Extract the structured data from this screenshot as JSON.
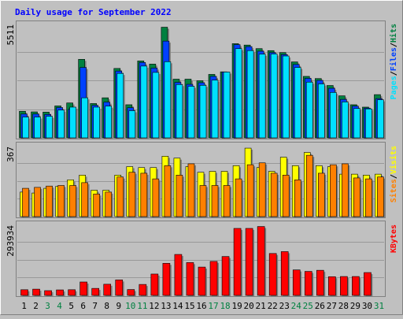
{
  "title": "Daily usage for September 2022",
  "colors": {
    "background": "#c0c0c0",
    "title": "#0000ff",
    "hits": "#008040",
    "files": "#0040ff",
    "pages": "#00e0ff",
    "visits": "#ffff00",
    "sites": "#ff8000",
    "kbytes": "#ff0000",
    "weekend_label": "#008040"
  },
  "chart_data": [
    {
      "type": "bar",
      "panel": "hits-files-pages",
      "ytick": "5511",
      "ylabel_parts": [
        "Pages",
        "/",
        "Files",
        "/",
        "Hits"
      ],
      "categories": [
        "1",
        "2",
        "3",
        "4",
        "5",
        "6",
        "7",
        "8",
        "9",
        "10",
        "11",
        "12",
        "13",
        "14",
        "15",
        "16",
        "17",
        "18",
        "19",
        "20",
        "21",
        "22",
        "23",
        "24",
        "25",
        "26",
        "27",
        "28",
        "29",
        "30",
        "31"
      ],
      "ylim": [
        0,
        5800
      ],
      "series": [
        {
          "name": "Hits",
          "values": [
            1340,
            1310,
            1300,
            1610,
            1760,
            3960,
            1730,
            2020,
            3500,
            1670,
            3880,
            3720,
            5580,
            2960,
            2960,
            2880,
            3200,
            3330,
            4750,
            4680,
            4500,
            4400,
            4300,
            3830,
            3100,
            2990,
            2640,
            2120,
            1670,
            1550,
            2180
          ]
        },
        {
          "name": "Files",
          "values": [
            1200,
            1200,
            1180,
            1530,
            1440,
            3550,
            1640,
            1800,
            3370,
            1520,
            3800,
            3520,
            4880,
            2800,
            2700,
            2780,
            3100,
            3320,
            4700,
            4600,
            4370,
            4300,
            4200,
            3700,
            3000,
            2900,
            2500,
            1940,
            1600,
            1500,
            1980
          ]
        },
        {
          "name": "Pages",
          "values": [
            1050,
            1050,
            1090,
            1400,
            1550,
            2020,
            1550,
            1600,
            3250,
            1370,
            3620,
            3300,
            3840,
            2690,
            2600,
            2650,
            2910,
            3320,
            4500,
            4400,
            4220,
            4230,
            4130,
            3550,
            2810,
            2720,
            2290,
            1810,
            1480,
            1460,
            1920
          ]
        }
      ]
    },
    {
      "type": "bar",
      "panel": "sites-visits",
      "ytick": "367",
      "ylabel_parts": [
        "Sites",
        "/",
        "Visits"
      ],
      "categories": [
        "1",
        "2",
        "3",
        "4",
        "5",
        "6",
        "7",
        "8",
        "9",
        "10",
        "11",
        "12",
        "13",
        "14",
        "15",
        "16",
        "17",
        "18",
        "19",
        "20",
        "21",
        "22",
        "23",
        "24",
        "25",
        "26",
        "27",
        "28",
        "29",
        "30",
        "31"
      ],
      "ylim": [
        0,
        380
      ],
      "series": [
        {
          "name": "Visits",
          "values": [
            130,
            125,
            150,
            160,
            195,
            220,
            140,
            140,
            220,
            265,
            260,
            260,
            320,
            310,
            265,
            235,
            240,
            240,
            270,
            363,
            260,
            240,
            315,
            270,
            340,
            270,
            265,
            225,
            225,
            220,
            225
          ]
        },
        {
          "name": "Sites",
          "values": [
            150,
            155,
            162,
            165,
            165,
            180,
            120,
            130,
            210,
            235,
            230,
            200,
            270,
            220,
            280,
            165,
            165,
            165,
            200,
            275,
            285,
            230,
            220,
            195,
            325,
            230,
            275,
            280,
            205,
            200,
            210
          ]
        }
      ]
    },
    {
      "type": "bar",
      "panel": "kbytes",
      "ytick": "293934",
      "ylabel_parts": [
        "KBytes"
      ],
      "categories": [
        "1",
        "2",
        "3",
        "4",
        "5",
        "6",
        "7",
        "8",
        "9",
        "10",
        "11",
        "12",
        "13",
        "14",
        "15",
        "16",
        "17",
        "18",
        "19",
        "20",
        "21",
        "22",
        "23",
        "24",
        "25",
        "26",
        "27",
        "28",
        "29",
        "30",
        "31"
      ],
      "ylim": [
        0,
        380000
      ],
      "series": [
        {
          "name": "KBytes",
          "values": [
            30000,
            33000,
            25000,
            29000,
            30000,
            71000,
            37000,
            59000,
            82000,
            31000,
            58000,
            113000,
            170000,
            217000,
            174000,
            150000,
            180000,
            206000,
            355000,
            355000,
            365000,
            222000,
            232000,
            135000,
            127000,
            133000,
            99000,
            100000,
            100000,
            121000,
            0
          ]
        }
      ]
    }
  ],
  "day_labels": [
    "1",
    "2",
    "3",
    "4",
    "5",
    "6",
    "7",
    "8",
    "9",
    "10",
    "11",
    "12",
    "13",
    "14",
    "15",
    "16",
    "17",
    "18",
    "19",
    "20",
    "21",
    "22",
    "23",
    "24",
    "25",
    "26",
    "27",
    "28",
    "29",
    "30",
    "31"
  ],
  "weekend_days": [
    "3",
    "4",
    "10",
    "11",
    "17",
    "18",
    "24",
    "25",
    "31"
  ]
}
